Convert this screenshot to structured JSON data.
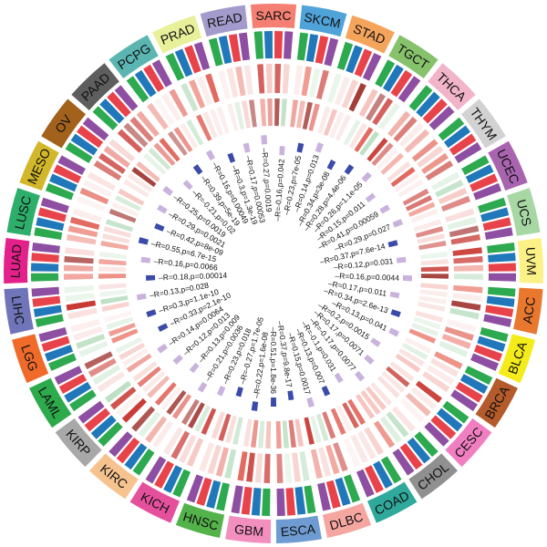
{
  "chart_data": {
    "type": "circos-heatmap",
    "categories": [
      "SARC",
      "SKCM",
      "STAD",
      "TGCT",
      "THCA",
      "THYM",
      "UCEC",
      "UCS",
      "UVM",
      "ACC",
      "BLCA",
      "BRCA",
      "CESC",
      "CHOL",
      "COAD",
      "DLBC",
      "ESCA",
      "GBM",
      "HNSC",
      "KICH",
      "KIRC",
      "KIRP",
      "LAML",
      "LGG",
      "LIHC",
      "LUAD",
      "LUSC",
      "MESO",
      "OV",
      "PAAD",
      "PCPG",
      "PRAD",
      "READ"
    ],
    "category_colors": [
      "#F47F72",
      "#4FA3D9",
      "#F5A45B",
      "#86C16B",
      "#F1B4C9",
      "#D2D2D2",
      "#A964B0",
      "#A7D8A4",
      "#FBF186",
      "#E9772E",
      "#F3EB1A",
      "#B45A2B",
      "#F07EC1",
      "#909090",
      "#2FA99B",
      "#F6A6A1",
      "#6E9BD1",
      "#F38FBF",
      "#53B34A",
      "#E5509D",
      "#F6C38F",
      "#A8A8A8",
      "#2DAA4B",
      "#F06A2A",
      "#6F75B8",
      "#E4208B",
      "#2EAE6B",
      "#D2B72A",
      "#A3621C",
      "#5E5E5E",
      "#5BB6B2",
      "#E8F09A",
      "#A39BCB"
    ],
    "track_colors": [
      "#2DA94F",
      "#2077BA",
      "#E8434A",
      "#8E4FA3"
    ],
    "correlation_labels": [
      {
        "text": "R=-0.16,p=0.042",
        "at": 0,
        "tone": "pos"
      },
      {
        "text": "R=0.23,p=7e-05",
        "at": 1,
        "tone": "neg"
      },
      {
        "text": "R=0.14,p=0.013",
        "at": 2,
        "tone": "pos"
      },
      {
        "text": "R=0.34,p=3e-08",
        "at": 3,
        "tone": "neg"
      },
      {
        "text": "R=0.28,p=4.4e-06",
        "at": 4,
        "tone": "neg"
      },
      {
        "text": "R=0.26,p=1.1e-05",
        "at": 5,
        "tone": "pos"
      },
      {
        "text": "R=0.15,p=0.011",
        "at": 6,
        "tone": "pos"
      },
      {
        "text": "R=0.41,p=0.00059",
        "at": 7,
        "tone": "pos"
      },
      {
        "text": "R=0.29,p=0.027",
        "at": 8,
        "tone": "pos"
      },
      {
        "text": "R=0.37,p=7.6e-14",
        "at": 9,
        "tone": "neg"
      },
      {
        "text": "R=0.12,p=0.031",
        "at": 10,
        "tone": "pos"
      },
      {
        "text": "R=0.16,p=0.0044",
        "at": 11,
        "tone": "pos"
      },
      {
        "text": "R=0.17,p=0.011",
        "at": 12,
        "tone": "pos"
      },
      {
        "text": "R=0.34,p=2.6e-13",
        "at": 13,
        "tone": "neg"
      },
      {
        "text": "R=0.13,p=0.041",
        "at": 14,
        "tone": "pos"
      },
      {
        "text": "R=0.2,p=0.0015",
        "at": 15,
        "tone": "pos"
      },
      {
        "text": "R=0.17,p=0.0071",
        "at": 16,
        "tone": "pos"
      },
      {
        "text": "R=-0.17,p=0.0077",
        "at": 17,
        "tone": "pos"
      },
      {
        "text": "R=-0.1,p=0.031",
        "at": 18,
        "tone": "pos"
      },
      {
        "text": "R=0.13,p=0.007",
        "at": 19,
        "tone": "neg"
      },
      {
        "text": "R=0.15,p=0.0017",
        "at": 20,
        "tone": "pos"
      },
      {
        "text": "R=0.37,p=9.8e-17",
        "at": 21,
        "tone": "neg"
      },
      {
        "text": "R=0.51,p=1.8e-36",
        "at": 22,
        "tone": "neg"
      },
      {
        "text": "R=0.22,p=1.6e-08",
        "at": 23,
        "tone": "neg"
      },
      {
        "text": "R=-0.27,p=1.7e-05",
        "at": 24,
        "tone": "neg"
      },
      {
        "text": "R=0.23,p=0.018",
        "at": 25,
        "tone": "pos"
      },
      {
        "text": "R=0.21,p=0.0036",
        "at": 26,
        "tone": "pos"
      },
      {
        "text": "R=0.13,p=0.009",
        "at": 27,
        "tone": "pos"
      },
      {
        "text": "R=0.12,p=0.013",
        "at": 28,
        "tone": "pos"
      },
      {
        "text": "R=0.14,p=0.0064",
        "at": 29,
        "tone": "pos"
      },
      {
        "text": "R=0.33,p=2.1e-10",
        "at": 30,
        "tone": "neg"
      },
      {
        "text": "R=0.3,p=1.1e-10",
        "at": 31,
        "tone": "neg"
      },
      {
        "text": "R=0.13,p=0.028",
        "at": 32,
        "tone": "pos"
      },
      {
        "text": "R=0.18,p=0.00014",
        "at": 33,
        "tone": "neg"
      },
      {
        "text": "R=0.16,p=0.0066",
        "at": 34,
        "tone": "pos"
      },
      {
        "text": "R=0.55,p=6.7e-15",
        "at": 35,
        "tone": "neg"
      },
      {
        "text": "R=0.42,p=8e-09",
        "at": 36,
        "tone": "neg"
      },
      {
        "text": "R=0.29,p=0.0021",
        "at": 37,
        "tone": "pos"
      },
      {
        "text": "R=0.25,p=0.0019",
        "at": 38,
        "tone": "pos"
      },
      {
        "text": "R=-0.21,p=0.02",
        "at": 39,
        "tone": "pos"
      },
      {
        "text": "R=0.39,p=5e-19",
        "at": 40,
        "tone": "neg"
      },
      {
        "text": "R=0.16,p=0.00049",
        "at": 41,
        "tone": "pos"
      },
      {
        "text": "R=0.3,p=1.3e-19",
        "at": 42,
        "tone": "neg"
      },
      {
        "text": "R=0.17,p=0.00053",
        "at": 43,
        "tone": "pos"
      },
      {
        "text": "R=0.27,p=0.0019",
        "at": 44,
        "tone": "pos"
      }
    ]
  }
}
